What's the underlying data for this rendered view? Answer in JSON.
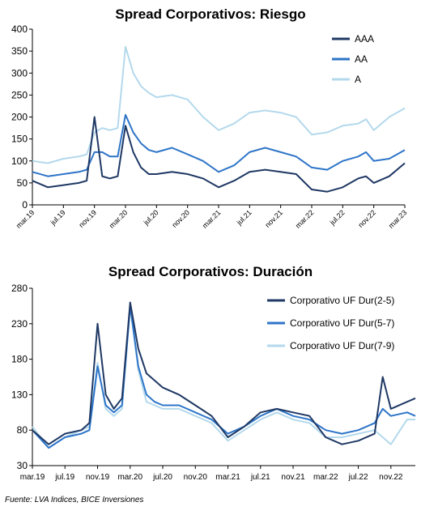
{
  "source": "Fuente: LVA Indices, BICE Inversiones",
  "chart_data": [
    {
      "type": "line",
      "title": "Spread Corporativos: Riesgo",
      "ylim": [
        0,
        400
      ],
      "yticks": [
        0,
        50,
        100,
        150,
        200,
        250,
        300,
        350,
        400
      ],
      "xlim": [
        "2019-03",
        "2023-03"
      ],
      "xtick_labels": [
        "mar.19",
        "jul.19",
        "nov.19",
        "mar.20",
        "jul.20",
        "nov.20",
        "mar.21",
        "jul.21",
        "nov.21",
        "mar.22",
        "jul.22",
        "nov.22",
        "mar.23"
      ],
      "x_label_rotation": "45deg",
      "grid": false,
      "legend_position": "top-right",
      "x": [
        "2019-03",
        "2019-05",
        "2019-07",
        "2019-09",
        "2019-10",
        "2019-11",
        "2019-12",
        "2020-01",
        "2020-02",
        "2020-03",
        "2020-04",
        "2020-05",
        "2020-06",
        "2020-07",
        "2020-09",
        "2020-11",
        "2021-01",
        "2021-03",
        "2021-05",
        "2021-07",
        "2021-09",
        "2021-11",
        "2022-01",
        "2022-03",
        "2022-05",
        "2022-07",
        "2022-09",
        "2022-10",
        "2022-11",
        "2023-01",
        "2023-03"
      ],
      "series": [
        {
          "name": "AAA",
          "color": "#1f3864",
          "values": [
            55,
            40,
            45,
            50,
            55,
            200,
            65,
            60,
            65,
            180,
            120,
            85,
            70,
            70,
            75,
            70,
            60,
            40,
            55,
            75,
            80,
            75,
            70,
            35,
            30,
            40,
            60,
            65,
            50,
            65,
            95
          ]
        },
        {
          "name": "AA",
          "color": "#2e75c8",
          "values": [
            75,
            65,
            70,
            75,
            80,
            120,
            120,
            110,
            110,
            205,
            165,
            140,
            125,
            120,
            130,
            115,
            100,
            75,
            90,
            120,
            130,
            120,
            110,
            85,
            80,
            100,
            110,
            120,
            100,
            105,
            125
          ]
        },
        {
          "name": "A",
          "color": "#b4d9ec",
          "values": [
            100,
            95,
            105,
            110,
            115,
            165,
            175,
            170,
            175,
            360,
            300,
            270,
            255,
            245,
            250,
            240,
            200,
            170,
            185,
            210,
            215,
            210,
            200,
            160,
            165,
            180,
            185,
            195,
            170,
            200,
            220
          ]
        }
      ]
    },
    {
      "type": "line",
      "title": "Spread Corporativos: Duración",
      "ylim": [
        30,
        280
      ],
      "yticks": [
        30,
        80,
        130,
        180,
        230,
        280
      ],
      "xlim": [
        "2019-03",
        "2023-02"
      ],
      "xtick_labels": [
        "mar.19",
        "jul.19",
        "nov.19",
        "mar.20",
        "jul.20",
        "nov.20",
        "mar.21",
        "jul.21",
        "nov.21",
        "mar.22",
        "jul.22",
        "nov.22"
      ],
      "grid": false,
      "legend_position": "top-right",
      "x": [
        "2019-03",
        "2019-05",
        "2019-07",
        "2019-09",
        "2019-10",
        "2019-11",
        "2019-12",
        "2020-01",
        "2020-02",
        "2020-03",
        "2020-04",
        "2020-05",
        "2020-06",
        "2020-07",
        "2020-09",
        "2020-11",
        "2021-01",
        "2021-03",
        "2021-05",
        "2021-07",
        "2021-09",
        "2021-11",
        "2022-01",
        "2022-03",
        "2022-05",
        "2022-07",
        "2022-09",
        "2022-10",
        "2022-11",
        "2023-01",
        "2023-02"
      ],
      "series": [
        {
          "name": "Corporativo UF Dur(2-5)",
          "color": "#1f3864",
          "values": [
            80,
            60,
            75,
            80,
            90,
            230,
            130,
            110,
            125,
            260,
            195,
            160,
            150,
            140,
            130,
            115,
            100,
            70,
            85,
            105,
            110,
            105,
            100,
            70,
            60,
            65,
            75,
            155,
            110,
            120,
            125
          ]
        },
        {
          "name": "Corporativo UF Dur(5-7)",
          "color": "#2e75c8",
          "values": [
            80,
            55,
            70,
            75,
            80,
            170,
            115,
            105,
            115,
            255,
            170,
            130,
            120,
            115,
            115,
            105,
            95,
            75,
            85,
            100,
            110,
            100,
            95,
            80,
            75,
            80,
            90,
            110,
            100,
            105,
            100
          ]
        },
        {
          "name": "Corporativo UF Dur(7-9)",
          "color": "#b4d9ec",
          "values": [
            85,
            55,
            70,
            80,
            85,
            175,
            110,
            100,
            110,
            255,
            165,
            120,
            115,
            110,
            110,
            100,
            90,
            65,
            80,
            95,
            105,
            95,
            90,
            70,
            70,
            75,
            80,
            70,
            60,
            95,
            95
          ]
        }
      ]
    }
  ]
}
